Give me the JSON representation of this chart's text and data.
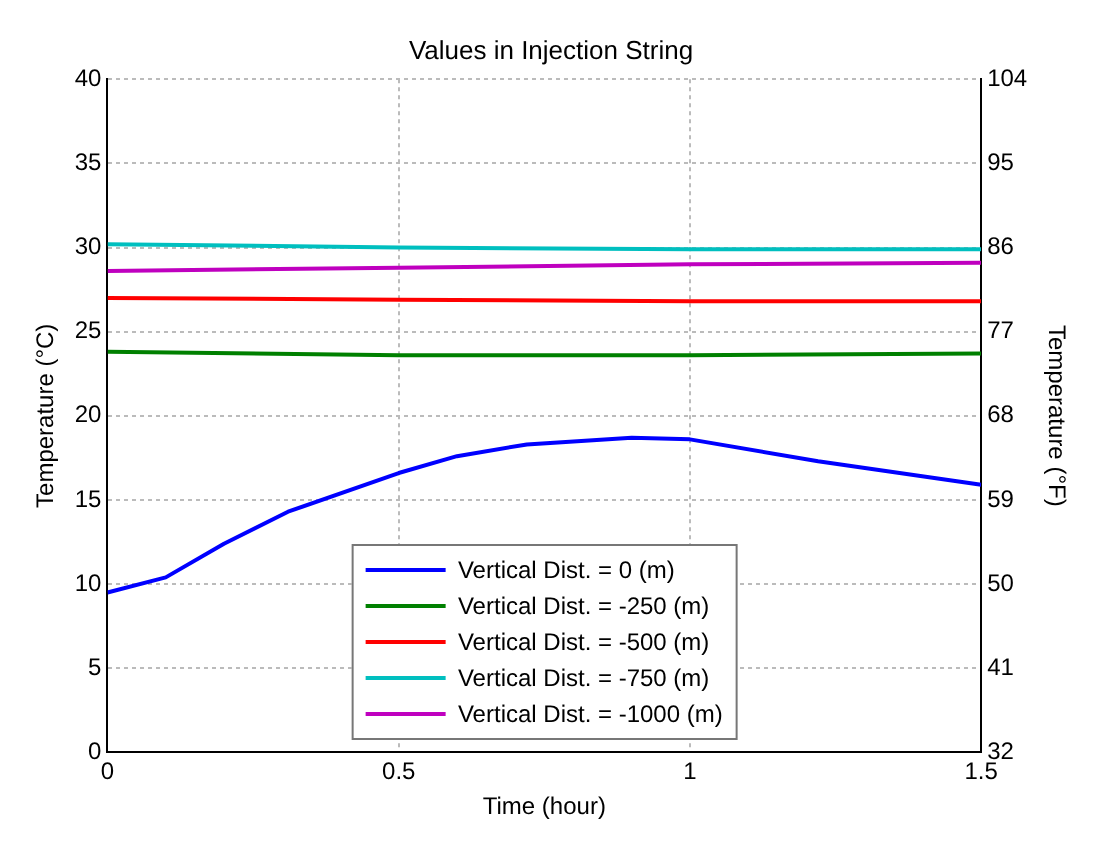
{
  "chart_data": {
    "type": "line",
    "title": "Values in Injection String",
    "xlabel": "Time (hour)",
    "ylabel": "Temperature (°C)",
    "y2label": "Temperature (°F)",
    "xlim": [
      0,
      1.5
    ],
    "xticks": [
      0,
      0.5,
      1,
      1.5
    ],
    "ylim": [
      0,
      40
    ],
    "yticks": [
      0,
      5,
      10,
      15,
      20,
      25,
      30,
      35,
      40
    ],
    "y2lim": [
      32,
      104
    ],
    "y2ticks": [
      32,
      41,
      50,
      59,
      68,
      77,
      86,
      95,
      104
    ],
    "grid": true,
    "legend": "bottom",
    "line_style": "solid",
    "marker": "none",
    "series": [
      {
        "name": "Vertical Dist. = 0 (m)",
        "color": "#0000ff",
        "x": [
          0,
          0.1,
          0.2,
          0.31,
          0.5,
          0.6,
          0.72,
          0.9,
          1.0,
          1.22,
          1.5
        ],
        "values": [
          9.5,
          10.4,
          12.4,
          14.3,
          16.6,
          17.6,
          18.3,
          18.7,
          18.6,
          17.3,
          15.9
        ]
      },
      {
        "name": "Vertical Dist. = -250 (m)",
        "color": "#008000",
        "x": [
          0,
          0.5,
          1,
          1.5
        ],
        "values": [
          23.8,
          23.6,
          23.6,
          23.7
        ]
      },
      {
        "name": "Vertical Dist. = -500 (m)",
        "color": "#ff0000",
        "x": [
          0,
          0.5,
          1,
          1.5
        ],
        "values": [
          27.0,
          26.9,
          26.8,
          26.8
        ]
      },
      {
        "name": "Vertical Dist. = -750 (m)",
        "color": "#00bfbf",
        "x": [
          0,
          0.5,
          1,
          1.5
        ],
        "values": [
          30.2,
          30.0,
          29.9,
          29.9
        ]
      },
      {
        "name": "Vertical Dist. = -1000 (m)",
        "color": "#bf00bf",
        "x": [
          0,
          0.5,
          1,
          1.5
        ],
        "values": [
          28.6,
          28.8,
          29.0,
          29.1
        ]
      }
    ]
  }
}
